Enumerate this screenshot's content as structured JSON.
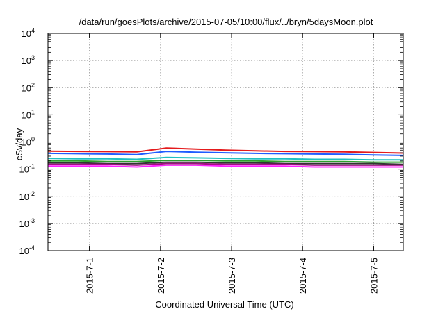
{
  "chart_data": {
    "type": "line",
    "title": "/data/run/goesPlots/archive/2015-07-05/10:00/flux/../bryn/5daysMoon.plot",
    "xlabel": "Coordinated Universal Time (UTC)",
    "ylabel": "cSv/day",
    "yscale": "log",
    "ylim": [
      0.0001,
      10000
    ],
    "xlim": [
      "2015-06-30T10:00",
      "2015-07-05T10:00"
    ],
    "grid": true,
    "y_ticks": [
      {
        "base": "10",
        "exp": "-4"
      },
      {
        "base": "10",
        "exp": "-3"
      },
      {
        "base": "10",
        "exp": "-2"
      },
      {
        "base": "10",
        "exp": "-1"
      },
      {
        "base": "10",
        "exp": "0"
      },
      {
        "base": "10",
        "exp": "1"
      },
      {
        "base": "10",
        "exp": "2"
      },
      {
        "base": "10",
        "exp": "3"
      },
      {
        "base": "10",
        "exp": "4"
      }
    ],
    "x_ticks": [
      "2015-7-1",
      "2015-7-2",
      "2015-7-3",
      "2015-7-4",
      "2015-7-5"
    ],
    "x": [
      "2015-06-30T10:00",
      "2015-06-30T20:00",
      "2015-07-01T06:00",
      "2015-07-01T16:00",
      "2015-07-02T02:00",
      "2015-07-02T12:00",
      "2015-07-02T22:00",
      "2015-07-03T08:00",
      "2015-07-03T18:00",
      "2015-07-04T04:00",
      "2015-07-04T14:00",
      "2015-07-05T00:00",
      "2015-07-05T10:00"
    ],
    "series": [
      {
        "color": "#e41a1c",
        "values": [
          0.46,
          0.45,
          0.44,
          0.43,
          0.6,
          0.55,
          0.5,
          0.47,
          0.45,
          0.44,
          0.43,
          0.41,
          0.39
        ]
      },
      {
        "color": "#1f5cff",
        "values": [
          0.38,
          0.37,
          0.36,
          0.34,
          0.45,
          0.42,
          0.4,
          0.38,
          0.37,
          0.36,
          0.35,
          0.33,
          0.32
        ]
      },
      {
        "color": "#20c0c0",
        "values": [
          0.25,
          0.24,
          0.24,
          0.23,
          0.27,
          0.26,
          0.25,
          0.24,
          0.24,
          0.23,
          0.23,
          0.22,
          0.22
        ]
      },
      {
        "color": "#2ca02c",
        "values": [
          0.2,
          0.2,
          0.19,
          0.19,
          0.21,
          0.21,
          0.2,
          0.2,
          0.19,
          0.19,
          0.19,
          0.18,
          0.18
        ]
      },
      {
        "color": "#333333",
        "values": [
          0.17,
          0.17,
          0.16,
          0.16,
          0.18,
          0.18,
          0.17,
          0.17,
          0.16,
          0.16,
          0.16,
          0.16,
          0.15
        ]
      },
      {
        "color": "#a01080",
        "values": [
          0.15,
          0.15,
          0.15,
          0.14,
          0.16,
          0.16,
          0.15,
          0.15,
          0.15,
          0.14,
          0.14,
          0.14,
          0.14
        ]
      },
      {
        "color": "#ff20ff",
        "values": [
          0.13,
          0.13,
          0.13,
          0.12,
          0.14,
          0.14,
          0.13,
          0.13,
          0.13,
          0.12,
          0.12,
          0.12,
          0.12
        ]
      }
    ]
  }
}
